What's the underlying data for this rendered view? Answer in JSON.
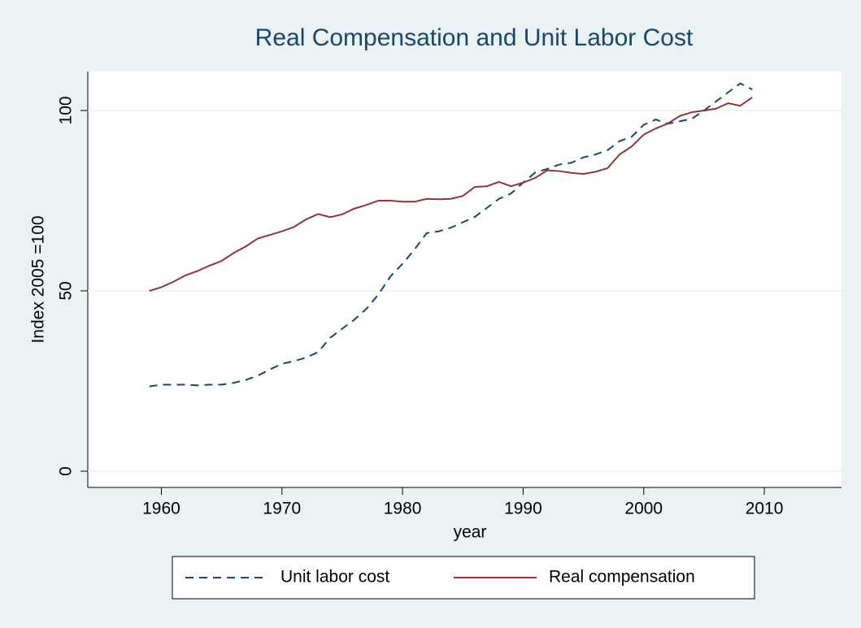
{
  "chart_data": {
    "type": "line",
    "title": "Real Compensation and Unit Labor Cost",
    "x_label": "year",
    "y_label": "Index 2005 =100",
    "x": [
      1959,
      1960,
      1961,
      1962,
      1963,
      1964,
      1965,
      1966,
      1967,
      1968,
      1969,
      1970,
      1971,
      1972,
      1973,
      1974,
      1975,
      1976,
      1977,
      1978,
      1979,
      1980,
      1981,
      1982,
      1983,
      1984,
      1985,
      1986,
      1987,
      1988,
      1989,
      1990,
      1991,
      1992,
      1993,
      1994,
      1995,
      1996,
      1997,
      1998,
      1999,
      2000,
      2001,
      2002,
      2003,
      2004,
      2005,
      2006,
      2007,
      2008,
      2009
    ],
    "series": [
      {
        "name": "Unit labor cost",
        "color": "#1a476f",
        "dashed": true,
        "values": [
          23.5,
          24,
          24,
          24,
          23.8,
          24,
          24,
          24.5,
          25.3,
          26.5,
          28.2,
          29.8,
          30.5,
          31.5,
          33,
          37,
          39.5,
          42,
          45,
          49,
          54,
          57.5,
          61.5,
          66,
          66.5,
          67.5,
          69,
          70.5,
          73,
          75.5,
          77,
          80,
          82.8,
          83.8,
          85,
          85.5,
          87,
          87.8,
          89,
          91.5,
          92.7,
          96,
          97.5,
          96.3,
          97,
          97.7,
          100,
          102.5,
          105,
          107.5,
          105.8
        ]
      },
      {
        "name": "Real compensation",
        "color": "#90353b",
        "dashed": false,
        "values": [
          50,
          51,
          52.5,
          54.3,
          55.5,
          57,
          58.3,
          60.5,
          62.3,
          64.5,
          65.5,
          66.5,
          67.7,
          69.8,
          71.3,
          70.4,
          71.2,
          72.8,
          73.8,
          75,
          75,
          74.7,
          74.7,
          75.5,
          75.4,
          75.5,
          76.3,
          78.8,
          79,
          80.2,
          79,
          80,
          81.3,
          83.4,
          83.2,
          82.7,
          82.4,
          83,
          84,
          87.8,
          90,
          93.3,
          95,
          96.4,
          98.5,
          99.5,
          100,
          100.5,
          102,
          101.3,
          103.6
        ]
      }
    ],
    "xlim": [
      1953.9,
      2016.4
    ],
    "xticks": [
      1960,
      1970,
      1980,
      1990,
      2000,
      2010
    ],
    "ylim": [
      -4.5,
      110.8
    ],
    "yticks": [
      0,
      50,
      100
    ],
    "grid": true,
    "legend": "bottom"
  }
}
